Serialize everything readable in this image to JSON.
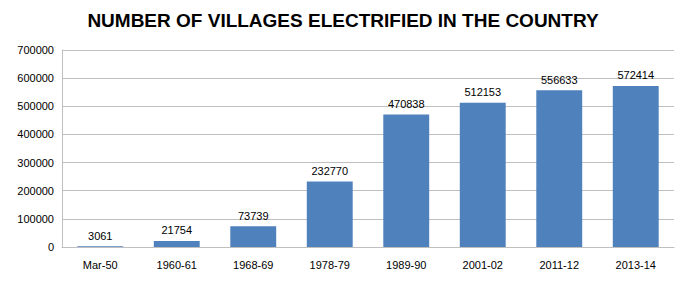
{
  "chart_data": {
    "type": "bar",
    "title": "NUMBER OF VILLAGES ELECTRIFIED IN THE COUNTRY",
    "categories": [
      "Mar-50",
      "1960-61",
      "1968-69",
      "1978-79",
      "1989-90",
      "2001-02",
      "2011-12",
      "2013-14"
    ],
    "values": [
      3061,
      21754,
      73739,
      232770,
      470838,
      512153,
      556633,
      572414
    ],
    "color": "#4f81bd",
    "ylim": [
      0,
      700000
    ],
    "yticks": [
      0,
      100000,
      200000,
      300000,
      400000,
      500000,
      600000,
      700000
    ],
    "grid": true,
    "data_labels": true
  }
}
